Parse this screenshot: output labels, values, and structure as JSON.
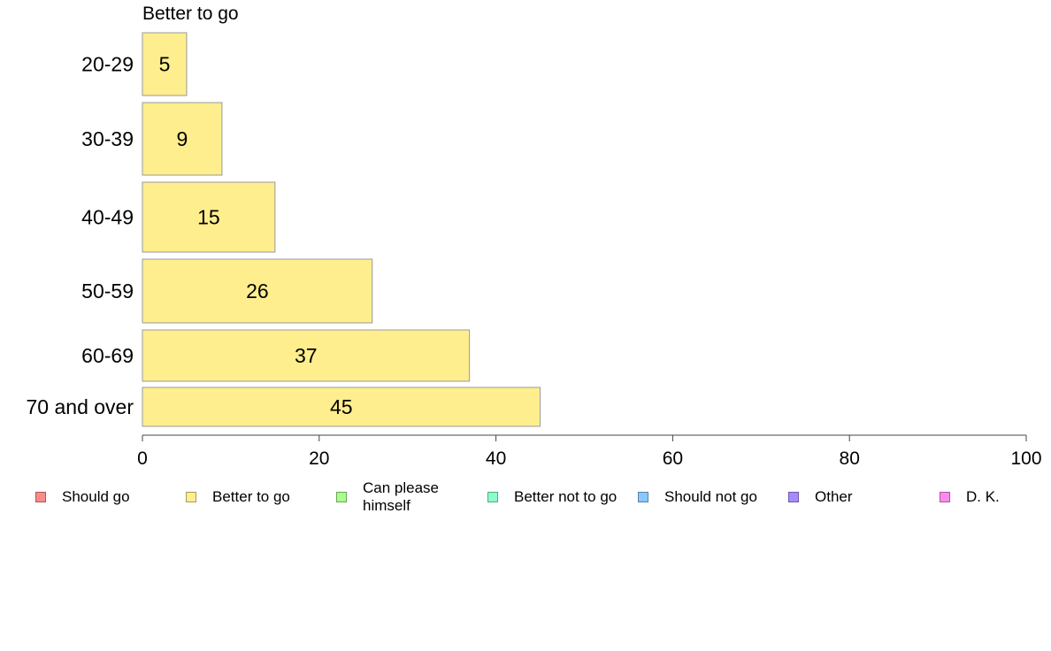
{
  "chart_data": {
    "type": "bar",
    "orientation": "horizontal",
    "title": "Better to go",
    "categories": [
      "20-29",
      "30-39",
      "40-49",
      "50-59",
      "60-69",
      "70 and over"
    ],
    "series": [
      {
        "name": "Better to go",
        "values": [
          5,
          9,
          15,
          26,
          37,
          45
        ]
      }
    ],
    "data_labels": [
      "5",
      "9",
      "15",
      "26",
      "37",
      "45"
    ],
    "xlim": [
      0,
      100
    ],
    "xticks": [
      0,
      20,
      40,
      60,
      80,
      100
    ],
    "xtick_labels": [
      "0",
      "20",
      "40",
      "60",
      "80",
      "100"
    ],
    "grid": false,
    "bar_color": "#ffee8e",
    "bar_edge_color": "#999999",
    "legend_placement": "bottom",
    "legend": [
      {
        "label": "Should go",
        "color": "#ff8a8a"
      },
      {
        "label": "Better to go",
        "color": "#ffee8e"
      },
      {
        "label": "Can please himself",
        "color": "#a8ff8a"
      },
      {
        "label": "Better not to go",
        "color": "#8affc8"
      },
      {
        "label": "Should not go",
        "color": "#8ac8ff"
      },
      {
        "label": "Other",
        "color": "#a88aff"
      },
      {
        "label": "D. K.",
        "color": "#ff8aee"
      }
    ]
  }
}
